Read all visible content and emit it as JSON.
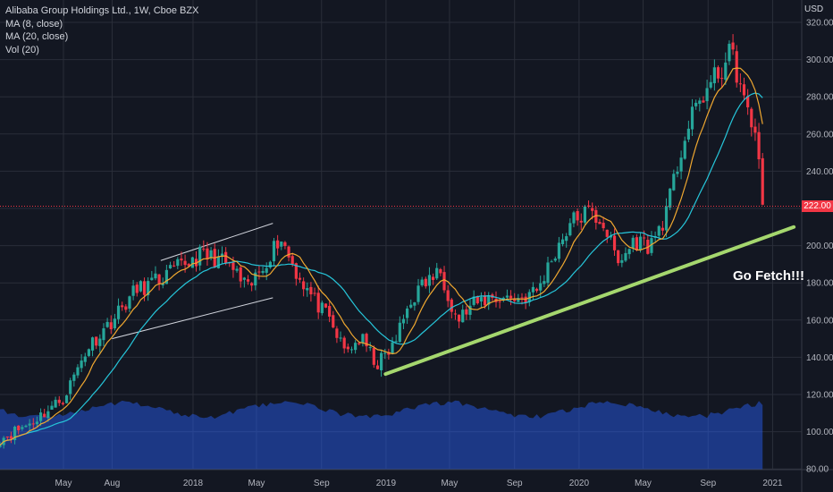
{
  "legend": {
    "symbol": "Alibaba Group Holdings Ltd., 1W, Cboe BZX",
    "ma8": "MA (8, close)",
    "ma20": "MA (20, close)",
    "vol": "Vol (20)"
  },
  "currency": "USD",
  "last_price_label": "222.00",
  "annotation": "Go Fetch!!!",
  "colors": {
    "background": "#131722",
    "grid": "#2a2e39",
    "up": "#26a69a",
    "down": "#f23645",
    "ma8": "#f0a830",
    "ma20": "#26c6da",
    "volume_area": "#2962ff",
    "trendline": "#a5d76e",
    "channel": "#d1d4dc"
  },
  "chart_data": {
    "type": "candlestick",
    "title": "Alibaba Group Holdings Ltd., 1W, Cboe BZX",
    "y_axis": {
      "label": "USD",
      "range": [
        80,
        320
      ],
      "ticks": [
        80,
        100,
        120,
        140,
        160,
        180,
        200,
        220,
        240,
        260,
        280,
        300,
        320
      ]
    },
    "x_axis": {
      "ticks": [
        "May",
        "Aug",
        "2018",
        "May",
        "Sep",
        "2019",
        "May",
        "Sep",
        "2020",
        "May",
        "Sep",
        "2021"
      ]
    },
    "last_price": 222.0,
    "close_path": [
      [
        "2017-01-01",
        96
      ],
      [
        "2017-03-01",
        105
      ],
      [
        "2017-05-01",
        118
      ],
      [
        "2017-06-15",
        145
      ],
      [
        "2017-08-01",
        160
      ],
      [
        "2017-09-15",
        176
      ],
      [
        "2017-11-01",
        182
      ],
      [
        "2017-12-15",
        190
      ],
      [
        "2018-01-15",
        195
      ],
      [
        "2018-02-15",
        193
      ],
      [
        "2018-03-15",
        188
      ],
      [
        "2018-04-15",
        176
      ],
      [
        "2018-05-15",
        190
      ],
      [
        "2018-06-15",
        205
      ],
      [
        "2018-07-15",
        186
      ],
      [
        "2018-08-15",
        172
      ],
      [
        "2018-09-15",
        160
      ],
      [
        "2018-10-15",
        143
      ],
      [
        "2018-11-15",
        150
      ],
      [
        "2018-12-15",
        136
      ],
      [
        "2019-01-15",
        146
      ],
      [
        "2019-02-15",
        170
      ],
      [
        "2019-03-15",
        180
      ],
      [
        "2019-04-15",
        186
      ],
      [
        "2019-05-15",
        160
      ],
      [
        "2019-06-15",
        168
      ],
      [
        "2019-07-15",
        172
      ],
      [
        "2019-08-15",
        172
      ],
      [
        "2019-09-15",
        172
      ],
      [
        "2019-10-15",
        176
      ],
      [
        "2019-11-15",
        196
      ],
      [
        "2019-12-15",
        212
      ],
      [
        "2020-01-15",
        218
      ],
      [
        "2020-02-15",
        213
      ],
      [
        "2020-03-15",
        190
      ],
      [
        "2020-04-15",
        203
      ],
      [
        "2020-05-15",
        200
      ],
      [
        "2020-06-15",
        218
      ],
      [
        "2020-07-15",
        255
      ],
      [
        "2020-08-15",
        278
      ],
      [
        "2020-09-15",
        290
      ],
      [
        "2020-10-15",
        304
      ],
      [
        "2020-11-01",
        286
      ],
      [
        "2020-11-20",
        264
      ],
      [
        "2020-12-01",
        262
      ],
      [
        "2020-12-18",
        222
      ]
    ],
    "series": [
      {
        "name": "MA (8, close)",
        "type": "line"
      },
      {
        "name": "MA (20, close)",
        "type": "line"
      },
      {
        "name": "Vol (20)",
        "type": "area"
      }
    ],
    "annotations": [
      {
        "type": "trendline",
        "from": [
          "2018-12-31",
          131
        ],
        "to": [
          "2021-02-10",
          210
        ]
      },
      {
        "type": "channel",
        "upper": [
          [
            "2017-11-01",
            192
          ],
          [
            "2018-06-01",
            212
          ]
        ],
        "lower": [
          [
            "2017-08-01",
            150
          ],
          [
            "2018-06-01",
            172
          ]
        ]
      },
      {
        "type": "text",
        "text": "Go Fetch!!!"
      }
    ]
  }
}
